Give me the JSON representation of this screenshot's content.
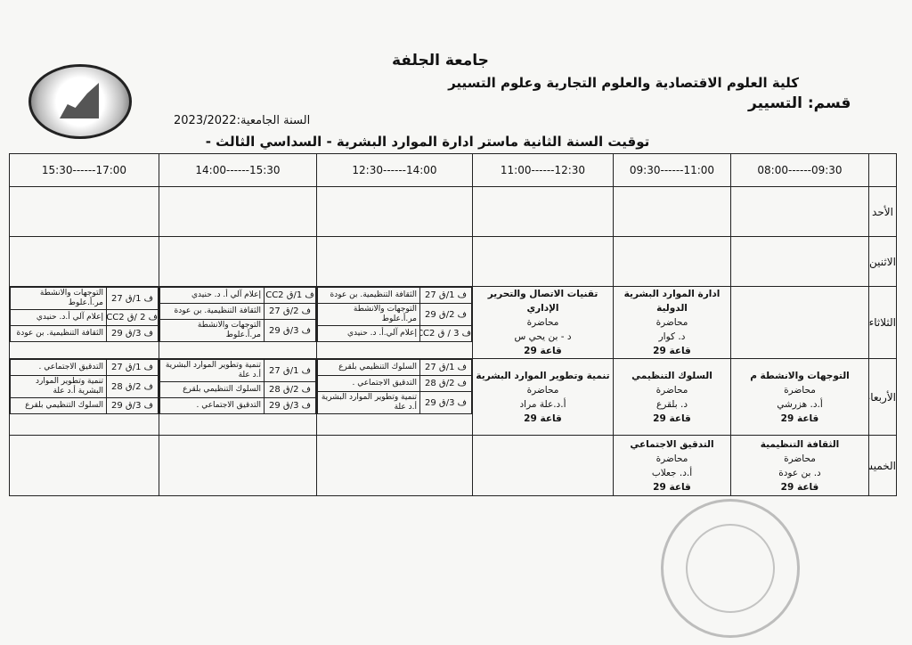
{
  "header": {
    "university": "جامعة الجلفة",
    "faculty": "كلية العلوم الاقتصادية والعلوم التجارية وعلوم التسيير",
    "department": "قسم: التسيير",
    "academic_year": "السنة الجامعية:2023/2022",
    "title": "توقيت السنة الثانية ماستر ادارة الموارد البشرية - السداسي الثالث -"
  },
  "times": [
    "09:30------08:00",
    "11:00------09:30",
    "12:30------11:00",
    "14:00------12:30",
    "15:30------14:00",
    "17:00------15:30"
  ],
  "days": [
    "الأحد",
    "الاثنين",
    "الثلاثاء",
    "الأربعاء",
    "الخميس"
  ],
  "tuesday": {
    "lectures": [
      {
        "course": "",
        "type": "",
        "teacher": "",
        "room": ""
      },
      {
        "course": "ادارة الموارد البشرية الدولية",
        "type": "محاضرة",
        "teacher": "د. كوار",
        "room": "قاعة 29"
      },
      {
        "course": "تقنيات الاتصال والتحرير الإداري",
        "type": "محاضرة",
        "teacher": "د - بن يحي س",
        "room": "قاعة 29"
      }
    ],
    "groups": [
      [
        {
          "room": "ف 1/ق 27",
          "text": "الثقافة التنظيمية. بن عودة"
        },
        {
          "room": "ف 2/ق 29",
          "text": "التوجهات والانشطة مر.أ.علوط"
        },
        {
          "room": "ف 3 / ق CC2",
          "text": "إعلام آلي.أ. د. حنيدي"
        }
      ],
      [
        {
          "room": "ف 1/ق CC2",
          "text": "إعلام آلي أ. د. حنيدي"
        },
        {
          "room": "ف 2/ق 27",
          "text": "الثقافة التنظيمية. بن عودة"
        },
        {
          "room": "ف 3/ق 29",
          "text": "التوجهات والانشطة مر.أ.علوط"
        }
      ],
      [
        {
          "room": "ف 1/ق 27",
          "text": "التوجهات والانشطة مر.أ.علوط"
        },
        {
          "room": "ف 2 /ق CC2",
          "text": "إعلام آلي أ.د. حنيدي"
        },
        {
          "room": "ف 3/ق 29",
          "text": "الثقافة التنظيمية. بن عودة"
        }
      ]
    ]
  },
  "wednesday": {
    "lectures": [
      {
        "course": "التوجهات والانشطة م",
        "type": "محاضرة",
        "teacher": "أ.د. هزرشي",
        "room": "قاعة 29"
      },
      {
        "course": "السلوك التنظيمي",
        "type": "محاضرة",
        "teacher": "د. بلقرع",
        "room": "قاعة 29"
      },
      {
        "course": "تنمية وتطوير الموارد البشرية",
        "type": "محاضرة",
        "teacher": "أ.د.علة مراد",
        "room": "قاعة 29"
      }
    ],
    "groups": [
      [
        {
          "room": "ف 1/ق 27",
          "text": "السلوك التنظيمي بلقرع"
        },
        {
          "room": "ف 2/ق 28",
          "text": "التدقيق الاجتماعي ."
        },
        {
          "room": "ف 3/ق 29",
          "text": "تنمية وتطوير الموارد البشرية أ.د علة"
        }
      ],
      [
        {
          "room": "ف 1/ق 27",
          "text": "تنمية وتطوير الموارد البشرية أ.د علة"
        },
        {
          "room": "ف 2/ق 28",
          "text": "السلوك التنظيمي بلقرع"
        },
        {
          "room": "ف 3/ق 29",
          "text": "التدقيق الاجتماعي ."
        }
      ],
      [
        {
          "room": "ف 1/ق 27",
          "text": "التدقيق الاجتماعي ."
        },
        {
          "room": "ف 2/ق 28",
          "text": "تنمية وتطوير الموارد البشرية أ.د علة"
        },
        {
          "room": "ف 3/ق 29",
          "text": "السلوك التنظيمي بلقرع"
        }
      ]
    ]
  },
  "thursday": {
    "lectures": [
      {
        "course": "الثقافة التنظيمية",
        "type": "محاضرة",
        "teacher": "د. بن عودة",
        "room": "قاعة 29"
      },
      {
        "course": "التدقيق الاجتماعي",
        "type": "محاضرة",
        "teacher": "أ.د. جعلاب",
        "room": "قاعة 29"
      }
    ]
  }
}
